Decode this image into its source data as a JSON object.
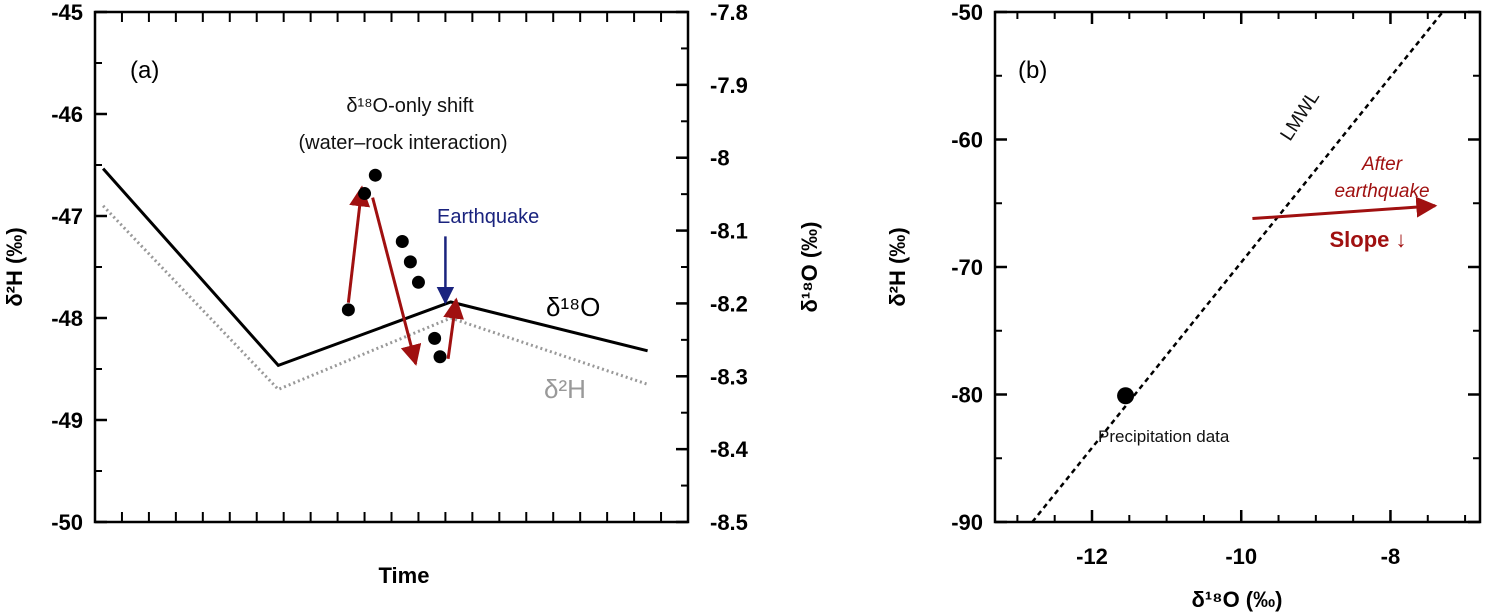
{
  "chart_data": [
    {
      "type": "line",
      "panel_label": "(a)",
      "xlabel": "Time",
      "ylabel": "δ²H (‰)",
      "ylabel_right": "δ¹⁸O (‰)",
      "ylim": [
        -50,
        -45
      ],
      "ylim_right": [
        -8.5,
        -7.8
      ],
      "yticks": [
        "-45",
        "-46",
        "-47",
        "-48",
        "-49",
        "-50"
      ],
      "yticks_right": [
        "-7.8",
        "-7.9",
        "-8",
        "-8.1",
        "-8.2",
        "-8.3",
        "-8.4",
        "-8.5"
      ],
      "series": [
        {
          "name": "δ¹⁸O",
          "color": "#000000",
          "style": "solid",
          "axis": "right",
          "x": [
            0.15,
            3.4,
            6.6,
            10.25
          ],
          "y": [
            -8.015,
            -8.285,
            -8.198,
            -8.265
          ]
        },
        {
          "name": "δ²H",
          "color": "#999999",
          "style": "dotted",
          "axis": "left",
          "x": [
            0.15,
            3.4,
            6.6,
            10.25
          ],
          "y": [
            -46.9,
            -48.7,
            -48.0,
            -48.65
          ]
        }
      ],
      "points": {
        "color": "#000000",
        "x": [
          4.7,
          5.0,
          5.2,
          5.7,
          5.85,
          6.0,
          6.3,
          6.4
        ],
        "y": [
          -47.92,
          -46.78,
          -46.6,
          -47.25,
          -47.45,
          -47.65,
          -48.2,
          -48.38
        ]
      },
      "arrows": {
        "color": "#a01010",
        "segments": [
          {
            "x1": 4.7,
            "y1": -47.85,
            "x2": 4.95,
            "y2": -46.72
          },
          {
            "x1": 5.15,
            "y1": -46.82,
            "x2": 5.95,
            "y2": -48.45
          },
          {
            "x1": 6.55,
            "y1": -48.4,
            "x2": 6.7,
            "y2": -47.82
          }
        ]
      },
      "earthquake_arrow": {
        "x": 6.5,
        "y1": -47.2,
        "y2": -47.85
      },
      "annotations": {
        "shift_line1": "δ¹⁸O-only shift",
        "shift_line2": "(water–rock interaction)",
        "earthquake": "Earthquake",
        "o18_label": "δ¹⁸O",
        "h2_label": "δ²H"
      }
    },
    {
      "type": "scatter",
      "panel_label": "(b)",
      "xlabel": "δ¹⁸O (‰)",
      "ylabel": "δ²H (‰)",
      "xlim": [
        -13.3,
        -6.8
      ],
      "ylim": [
        -90,
        -50
      ],
      "xticks": [
        "-12",
        "-10",
        "-8"
      ],
      "yticks": [
        "-50",
        "-60",
        "-70",
        "-80",
        "-90"
      ],
      "lmwl": {
        "label": "LMWL",
        "x": [
          -12.8,
          -7.3
        ],
        "y": [
          -90,
          -50
        ]
      },
      "points": [
        {
          "x": -11.55,
          "y": -80.1,
          "label": "Precipitation data"
        }
      ],
      "arrow": {
        "x1": -9.85,
        "y1": -66.2,
        "x2": -7.4,
        "y2": -65.2,
        "color": "#a01010"
      },
      "annotations": {
        "after_line1": "After",
        "after_line2": "earthquake",
        "slope": "Slope ↓"
      }
    }
  ]
}
